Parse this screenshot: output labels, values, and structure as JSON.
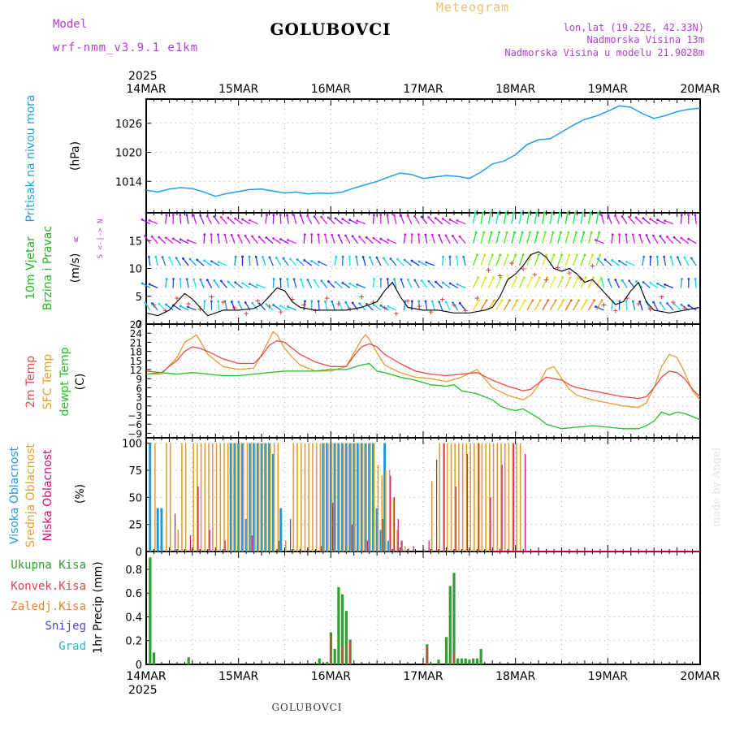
{
  "header": {
    "model_label": "Model",
    "model_name": "wrf-nmm_v3.9.1 e1km",
    "station": "GOLUBOVCI",
    "product": "Meteogram",
    "lonlat": "lon,lat (19.22E, 42.33N)",
    "altitude": "Nadmorska Visina 13m",
    "model_altitude": "Nadmorska Visina u modelu 21.9028m",
    "footer_station": "GOLUBOVCI",
    "credit": "made by Angel"
  },
  "axis": {
    "year": "2025",
    "dates": [
      "14MAR",
      "15MAR",
      "16MAR",
      "17MAR",
      "18MAR",
      "19MAR",
      "20MAR"
    ]
  },
  "colors": {
    "pressure": "#1ea0e6",
    "wind_label": "#22b322",
    "temp2m": "#e8484d",
    "sfc": "#e0a030",
    "dewpt": "#22c022",
    "high_cloud": "#1e9be0",
    "mid_cloud": "#e0a030",
    "low_cloud": "#d01070",
    "precip_total": "#2ea02e",
    "precip_conv": "#e0404a",
    "precip_frz": "#f08030",
    "snow": "#4848e0",
    "hail": "#20c0b0",
    "header_purple": "#b040d0"
  },
  "panels": {
    "pressure": {
      "label": "Pritisak na nivou mora",
      "unit": "(hPa)"
    },
    "wind": {
      "label1": "10m Vjetar",
      "label2": "Brzina i Pravac",
      "unit": "(m/s)",
      "compass": "W <-|-> E",
      "compass_n": "N",
      "compass_s": "S"
    },
    "temp": {
      "label_2m": "2m Temp",
      "label_sfc": "SFC Temp",
      "label_dew": "dewpt Temp",
      "unit": "(C)"
    },
    "cloud": {
      "label_high": "Visoka Oblacnost",
      "label_mid": "Srednja Oblacnost",
      "label_low": "Niska Oblacnost",
      "unit": "(%)"
    },
    "precip": {
      "legend": [
        "Ukupna Kisa",
        "Konvek.Kisa",
        "Zaledj.Kisa",
        "Snijeg",
        "Grad"
      ],
      "unit": "1hr Precip (mm)"
    }
  },
  "chart_data": [
    {
      "type": "line",
      "title": "Pritisak na nivou mora",
      "ylabel": "(hPa)",
      "xlim": [
        0,
        144
      ],
      "ylim": [
        1007.5,
        1031
      ],
      "yticks": [
        1014,
        1020,
        1026
      ],
      "grid": true,
      "series": [
        {
          "name": "Pritisak na nivou mora",
          "x": [
            0,
            3,
            6,
            9,
            12,
            15,
            18,
            21,
            24,
            27,
            30,
            33,
            36,
            39,
            42,
            45,
            48,
            51,
            54,
            57,
            60,
            63,
            66,
            69,
            72,
            75,
            78,
            81,
            84,
            87,
            90,
            93,
            96,
            99,
            102,
            105,
            108,
            111,
            114,
            117,
            120,
            123,
            126,
            129,
            132,
            135,
            138,
            141,
            144
          ],
          "values": [
            1012.2,
            1011.8,
            1012.4,
            1012.7,
            1012.5,
            1011.8,
            1010.9,
            1011.5,
            1011.9,
            1012.3,
            1012.4,
            1012.0,
            1011.6,
            1011.8,
            1011.4,
            1011.6,
            1011.5,
            1011.8,
            1012.6,
            1013.3,
            1014.0,
            1014.9,
            1015.7,
            1015.4,
            1014.6,
            1014.9,
            1015.2,
            1015.0,
            1014.6,
            1015.9,
            1017.6,
            1018.2,
            1019.5,
            1021.6,
            1022.6,
            1022.8,
            1024.2,
            1025.6,
            1026.8,
            1027.5,
            1028.5,
            1029.6,
            1029.3,
            1028.0,
            1027.0,
            1027.6,
            1028.4,
            1028.9,
            1029.1
          ]
        }
      ]
    },
    {
      "type": "line",
      "title": "10m Vjetar Brzina i Pravac",
      "ylabel": "(m/s)",
      "xlim": [
        0,
        144
      ],
      "ylim": [
        0,
        20
      ],
      "yticks": [
        0,
        5,
        10,
        15
      ],
      "grid": true,
      "series": [
        {
          "name": "10m Vjetar",
          "x": [
            0,
            3,
            6,
            8,
            10,
            12,
            14,
            16,
            18,
            20,
            24,
            28,
            30,
            32,
            34,
            36,
            38,
            40,
            44,
            48,
            52,
            56,
            60,
            62,
            64,
            66,
            68,
            72,
            76,
            80,
            84,
            88,
            90,
            92,
            94,
            96,
            98,
            100,
            102,
            104,
            106,
            108,
            110,
            112,
            114,
            116,
            118,
            120,
            122,
            124,
            126,
            128,
            130,
            132,
            136,
            140,
            144
          ],
          "values": [
            2,
            1.5,
            2.5,
            4,
            5.5,
            4.5,
            3,
            1.5,
            2,
            2.5,
            2.5,
            2.8,
            3.5,
            5,
            6.5,
            6,
            4,
            3,
            2.5,
            2.5,
            2.5,
            3,
            4,
            6,
            7.5,
            5,
            3,
            2.5,
            2.5,
            2,
            2,
            2.5,
            3,
            5,
            8,
            9,
            10.5,
            12.5,
            13,
            12,
            10,
            9.5,
            10,
            9,
            7.5,
            8,
            6.5,
            5,
            3.5,
            4,
            6,
            7.5,
            4,
            2.5,
            2,
            2.5,
            3
          ]
        }
      ]
    },
    {
      "type": "line",
      "title": "2m Temp / SFC Temp / dewpt Temp",
      "ylabel": "(C)",
      "xlim": [
        0,
        144
      ],
      "ylim": [
        -10.5,
        27
      ],
      "yticks": [
        -9,
        -6,
        -3,
        0,
        3,
        6,
        9,
        12,
        15,
        18,
        21,
        24,
        27
      ],
      "grid": true,
      "series": [
        {
          "name": "2m Temp",
          "x": [
            0,
            4,
            8,
            10,
            12,
            14,
            16,
            20,
            24,
            28,
            30,
            32,
            34,
            36,
            38,
            40,
            44,
            48,
            52,
            54,
            56,
            58,
            60,
            62,
            66,
            70,
            74,
            78,
            82,
            86,
            90,
            94,
            98,
            100,
            102,
            104,
            108,
            110,
            112,
            116,
            120,
            124,
            128,
            130,
            132,
            134,
            136,
            138,
            140,
            142,
            144
          ],
          "values": [
            11.5,
            11,
            15,
            18,
            19.5,
            19,
            18,
            15.5,
            14,
            14,
            16.5,
            20,
            21.5,
            21,
            19,
            17,
            14.5,
            13,
            13,
            16.5,
            19.5,
            20.5,
            19.5,
            17,
            14,
            11.5,
            10.5,
            10,
            10.5,
            11,
            8.5,
            6.5,
            5,
            5.5,
            7.5,
            9.5,
            8.5,
            7,
            6,
            5,
            4,
            3,
            2.5,
            3,
            6,
            9.5,
            11.5,
            11,
            9,
            5.5,
            3
          ]
        },
        {
          "name": "SFC Temp",
          "x": [
            0,
            4,
            8,
            10,
            12,
            13,
            14,
            16,
            20,
            24,
            28,
            30,
            32,
            33,
            34,
            36,
            38,
            40,
            44,
            48,
            52,
            54,
            56,
            57,
            58,
            60,
            62,
            66,
            70,
            74,
            78,
            82,
            86,
            90,
            94,
            98,
            100,
            102,
            104,
            106,
            108,
            110,
            112,
            116,
            120,
            124,
            128,
            130,
            132,
            134,
            136,
            138,
            140,
            142,
            144
          ],
          "values": [
            10.5,
            10.5,
            16,
            21,
            22.5,
            23.5,
            21.5,
            17,
            13,
            12,
            12.5,
            17,
            22,
            24.5,
            23.5,
            19,
            16,
            13.5,
            11.5,
            11.5,
            13,
            17.5,
            22,
            23.5,
            22,
            17.5,
            13.5,
            11,
            9.5,
            9,
            8,
            9.5,
            12,
            6,
            3.5,
            2,
            3.5,
            7,
            12,
            13,
            9,
            5.5,
            3.5,
            2,
            1,
            0,
            -0.5,
            1,
            6,
            13,
            17,
            16,
            11,
            5,
            2
          ]
        },
        {
          "name": "dewpt Temp",
          "x": [
            0,
            4,
            8,
            12,
            16,
            20,
            24,
            28,
            32,
            36,
            40,
            44,
            48,
            52,
            56,
            58,
            60,
            62,
            66,
            70,
            74,
            78,
            80,
            82,
            86,
            90,
            92,
            94,
            96,
            98,
            100,
            102,
            104,
            108,
            112,
            116,
            120,
            124,
            128,
            130,
            132,
            134,
            136,
            138,
            140,
            142,
            144
          ],
          "values": [
            10.5,
            11,
            10.5,
            11,
            10.5,
            10,
            10,
            10.5,
            11,
            11.5,
            11.5,
            11.5,
            12,
            12,
            13.5,
            14,
            11.5,
            11,
            9.5,
            8.5,
            7,
            6.5,
            7,
            5,
            4,
            2,
            0,
            -1,
            -1.5,
            -1,
            -2.5,
            -4,
            -6,
            -7.5,
            -7,
            -6.5,
            -7,
            -7.5,
            -7.5,
            -6.5,
            -5,
            -2,
            -3,
            -2,
            -2.5,
            -3.5,
            -4.5
          ]
        }
      ]
    },
    {
      "type": "bar",
      "title": "Visoka / Srednja / Niska Oblacnost",
      "ylabel": "(%)",
      "xlim": [
        0,
        144
      ],
      "ylim": [
        0,
        105
      ],
      "yticks": [
        0,
        25,
        50,
        75,
        100
      ],
      "grid": true,
      "series": [
        {
          "name": "Visoka Oblacnost",
          "x": [
            1,
            3,
            4,
            22,
            23,
            24,
            25,
            26,
            27,
            28,
            29,
            30,
            31,
            32,
            33,
            35,
            46,
            47,
            48,
            49,
            50,
            51,
            52,
            53,
            54,
            55,
            56,
            57,
            58,
            59,
            60,
            61,
            62,
            63
          ],
          "values": [
            100,
            40,
            40,
            100,
            100,
            100,
            100,
            30,
            100,
            100,
            100,
            100,
            100,
            100,
            90,
            40,
            100,
            100,
            100,
            100,
            100,
            100,
            100,
            100,
            100,
            100,
            100,
            100,
            100,
            100,
            40,
            20,
            100,
            10
          ]
        },
        {
          "name": "Srednja Oblacnost",
          "x": [
            2,
            5,
            6,
            8,
            9,
            10,
            12,
            13,
            14,
            15,
            16,
            17,
            18,
            19,
            20,
            21,
            22,
            23,
            24,
            25,
            26,
            27,
            28,
            29,
            30,
            31,
            32,
            33,
            34,
            36,
            38,
            39,
            40,
            41,
            42,
            43,
            44,
            45,
            46,
            47,
            48,
            49,
            50,
            51,
            52,
            53,
            54,
            55,
            56,
            57,
            58,
            59,
            60,
            61,
            62,
            63,
            64,
            65,
            66,
            67,
            68,
            72,
            74,
            76,
            77,
            78,
            79,
            80,
            81,
            82,
            83,
            84,
            85,
            86,
            87,
            88,
            89,
            90,
            91,
            92,
            93,
            94,
            95,
            96,
            97
          ],
          "values": [
            100,
            100,
            100,
            20,
            100,
            100,
            100,
            100,
            100,
            100,
            100,
            100,
            100,
            100,
            100,
            100,
            100,
            100,
            100,
            100,
            100,
            100,
            100,
            100,
            100,
            100,
            100,
            100,
            100,
            10,
            100,
            100,
            100,
            100,
            100,
            100,
            100,
            100,
            100,
            100,
            100,
            100,
            100,
            100,
            100,
            100,
            100,
            100,
            100,
            100,
            100,
            100,
            80,
            70,
            75,
            75,
            50,
            20,
            10,
            5,
            3,
            2,
            65,
            100,
            100,
            100,
            100,
            100,
            100,
            100,
            100,
            100,
            100,
            100,
            100,
            100,
            100,
            100,
            100,
            100,
            100,
            100,
            100,
            100,
            100
          ]
        },
        {
          "name": "Niska Oblacnost",
          "x": [
            7,
            11,
            13,
            16,
            20,
            27,
            34,
            37,
            45,
            48,
            53,
            57,
            61,
            63,
            64,
            65,
            66,
            69,
            73,
            75,
            77,
            80,
            83,
            86,
            89,
            92,
            95,
            98
          ],
          "values": [
            35,
            15,
            60,
            20,
            10,
            15,
            10,
            30,
            5,
            45,
            25,
            10,
            30,
            70,
            50,
            30,
            10,
            5,
            10,
            85,
            100,
            60,
            90,
            100,
            50,
            80,
            100,
            90
          ]
        }
      ]
    },
    {
      "type": "bar",
      "title": "1hr Precip",
      "ylabel": "1hr Precip (mm)",
      "xlim": [
        0,
        144
      ],
      "ylim": [
        0,
        0.95
      ],
      "yticks": [
        0,
        0.2,
        0.4,
        0.6,
        0.8
      ],
      "grid": true,
      "series": [
        {
          "name": "Ukupna Kisa",
          "x": [
            1,
            2,
            11,
            45,
            47,
            48,
            49,
            50,
            51,
            52,
            53,
            73,
            74,
            76,
            78,
            79,
            80,
            81,
            82,
            83,
            84,
            85,
            86,
            87
          ],
          "values": [
            0.9,
            0.1,
            0.06,
            0.05,
            0.02,
            0.27,
            0.13,
            0.65,
            0.59,
            0.45,
            0.21,
            0.17,
            0.01,
            0.04,
            0.23,
            0.66,
            0.77,
            0.05,
            0.05,
            0.05,
            0.04,
            0.05,
            0.05,
            0.13
          ]
        },
        {
          "name": "Konvek.Kisa",
          "x": [
            48,
            51,
            53,
            73,
            80
          ],
          "values": [
            0.25,
            0.15,
            0.2,
            0.15,
            0.1
          ]
        }
      ]
    }
  ]
}
